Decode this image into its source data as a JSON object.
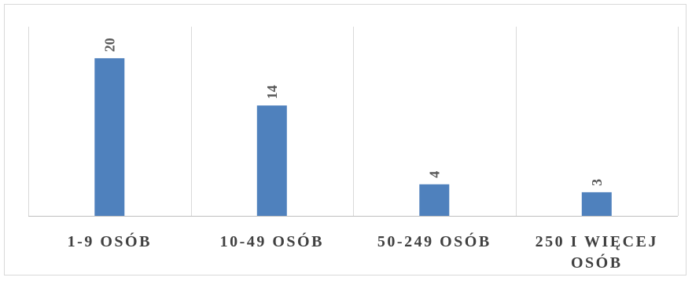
{
  "chart_data": {
    "type": "bar",
    "categories": [
      [
        "1-9 OSÓB"
      ],
      [
        "10-49 OSÓB"
      ],
      [
        "50-249 OSÓB"
      ],
      [
        "250 I WIĘCEJ",
        "OSÓB"
      ]
    ],
    "values": [
      20,
      14,
      4,
      3
    ],
    "data_labels": [
      "20",
      "14",
      "4",
      "3"
    ],
    "title": "",
    "xlabel": "",
    "ylabel": "",
    "ylim": [
      0,
      24
    ],
    "grid": "vertical category separators",
    "legend": "none",
    "colors": {
      "bar": "#4f81bd",
      "grid": "#d9d9d9",
      "axis": "#bfbfbf",
      "text": "#404040",
      "label": "#595959"
    }
  }
}
